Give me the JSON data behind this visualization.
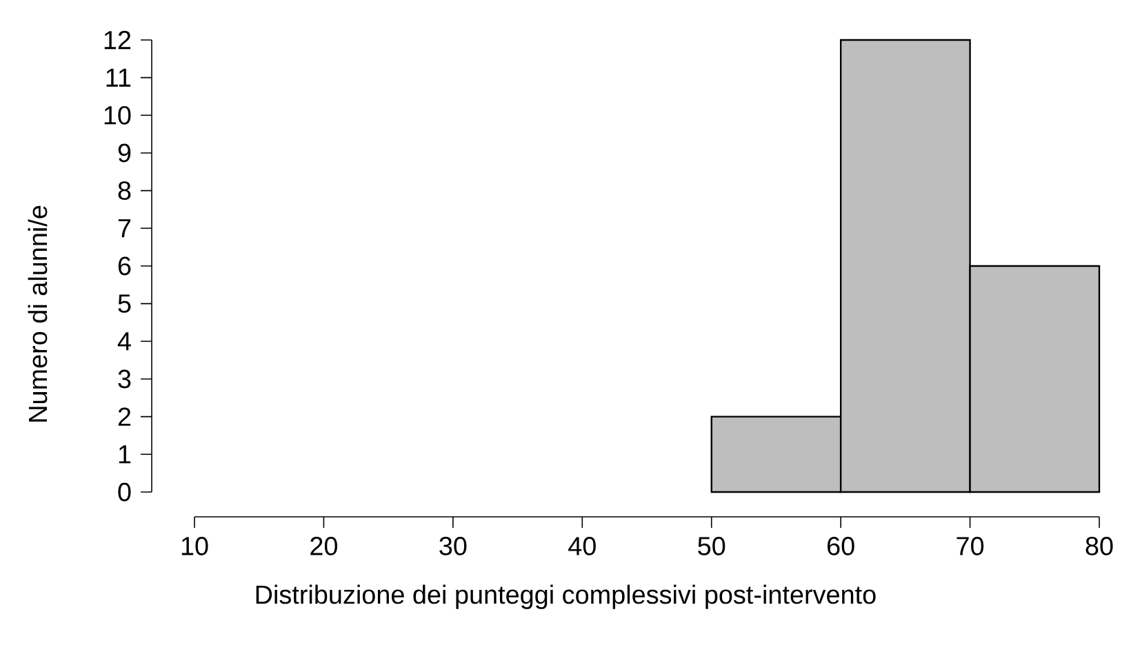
{
  "chart_data": {
    "type": "histogram",
    "xlabel": "Distribuzione dei punteggi complessivi post-intervento",
    "ylabel": "Numero di alunni/e",
    "bins": [
      50,
      60,
      70,
      80
    ],
    "values": [
      2,
      12,
      6
    ],
    "color": "#bebebe",
    "xlim": [
      10,
      80
    ],
    "ylim": [
      0,
      12
    ],
    "xticks": [
      10,
      20,
      30,
      40,
      50,
      60,
      70,
      80
    ],
    "yticks": [
      0,
      1,
      2,
      3,
      4,
      5,
      6,
      7,
      8,
      9,
      10,
      11,
      12
    ]
  }
}
